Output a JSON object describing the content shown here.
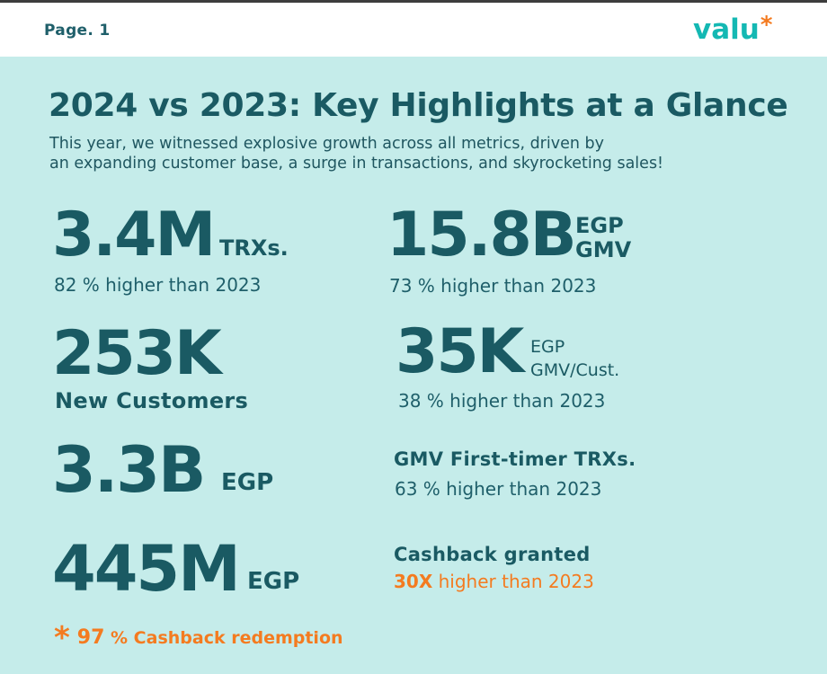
{
  "header": {
    "page_label": "Page. 1",
    "logo_text": "valu",
    "logo_mark": "*"
  },
  "title": "2024 vs 2023: Key Highlights at a Glance",
  "subtitle_line1": "This year, we witnessed explosive growth across all metrics, driven by",
  "subtitle_line2": "an expanding customer base, a surge in transactions, and skyrocketing sales!",
  "metrics": {
    "trx": {
      "value": "3.4M",
      "unit": "TRXs.",
      "comparison": "82 % higher than 2023"
    },
    "gmv": {
      "value": "15.8B",
      "unit_line1": "EGP",
      "unit_line2": "GMV",
      "comparison": "73 % higher than 2023"
    },
    "customers": {
      "value": "253K",
      "label": "New Customers"
    },
    "gmv_per_customer": {
      "value": "35K",
      "unit_line1": "EGP",
      "unit_line2": "GMV/Cust.",
      "comparison": "38 % higher than 2023"
    },
    "first_timer": {
      "value": "3.3B",
      "unit": "EGP",
      "label": "GMV First-timer TRXs.",
      "comparison": "63 % higher than 2023"
    },
    "cashback": {
      "value": "445M",
      "unit": "EGP",
      "label": "Cashback granted",
      "multiplier": "30X",
      "comparison_rest": " higher than 2023"
    }
  },
  "redemption": {
    "icon": "*",
    "percent": "97",
    "text": " % Cashback redemption"
  },
  "colors": {
    "background": "#c5ecea",
    "primary_text": "#1a5a63",
    "accent": "#f47b20",
    "logo": "#14b8b3"
  }
}
